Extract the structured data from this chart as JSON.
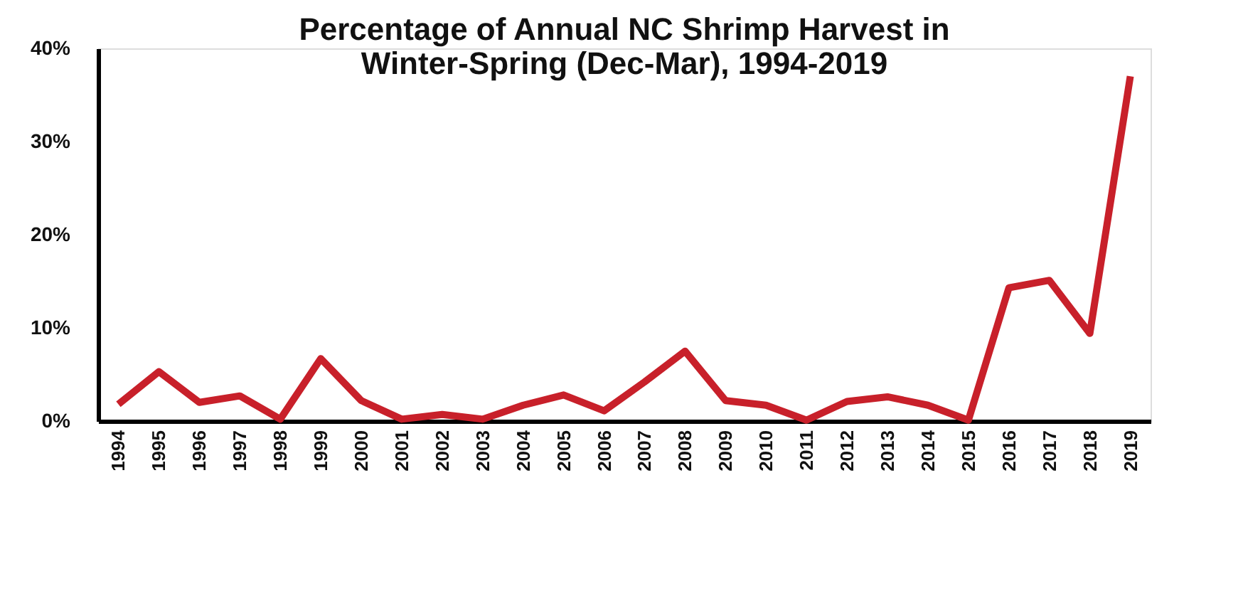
{
  "chart_data": {
    "type": "line",
    "title": [
      "Percentage of Annual NC Shrimp Harvest in",
      "Winter-Spring (Dec-Mar), 1994-2019"
    ],
    "categories": [
      "1994",
      "1995",
      "1996",
      "1997",
      "1998",
      "1999",
      "2000",
      "2001",
      "2002",
      "2003",
      "2004",
      "2005",
      "2006",
      "2007",
      "2008",
      "2009",
      "2010",
      "2011",
      "2012",
      "2013",
      "2014",
      "2015",
      "2016",
      "2017",
      "2018",
      "2019"
    ],
    "series": [
      {
        "color": "#c8202a",
        "values": [
          1.8,
          5.3,
          2.0,
          2.7,
          0.2,
          6.7,
          2.2,
          0.2,
          0.7,
          0.2,
          1.7,
          2.8,
          1.1,
          4.2,
          7.5,
          2.2,
          1.7,
          0.1,
          2.1,
          2.6,
          1.7,
          0.1,
          14.3,
          15.1,
          9.4,
          37.0
        ]
      }
    ],
    "ylim": [
      0,
      40
    ],
    "yticks": [
      {
        "value": 0,
        "label": "0%"
      },
      {
        "value": 10,
        "label": "10%"
      },
      {
        "value": 20,
        "label": "20%"
      },
      {
        "value": 30,
        "label": "30%"
      },
      {
        "value": 40,
        "label": "40%"
      }
    ],
    "grid": false,
    "marker": "none",
    "line_style": "solid"
  }
}
